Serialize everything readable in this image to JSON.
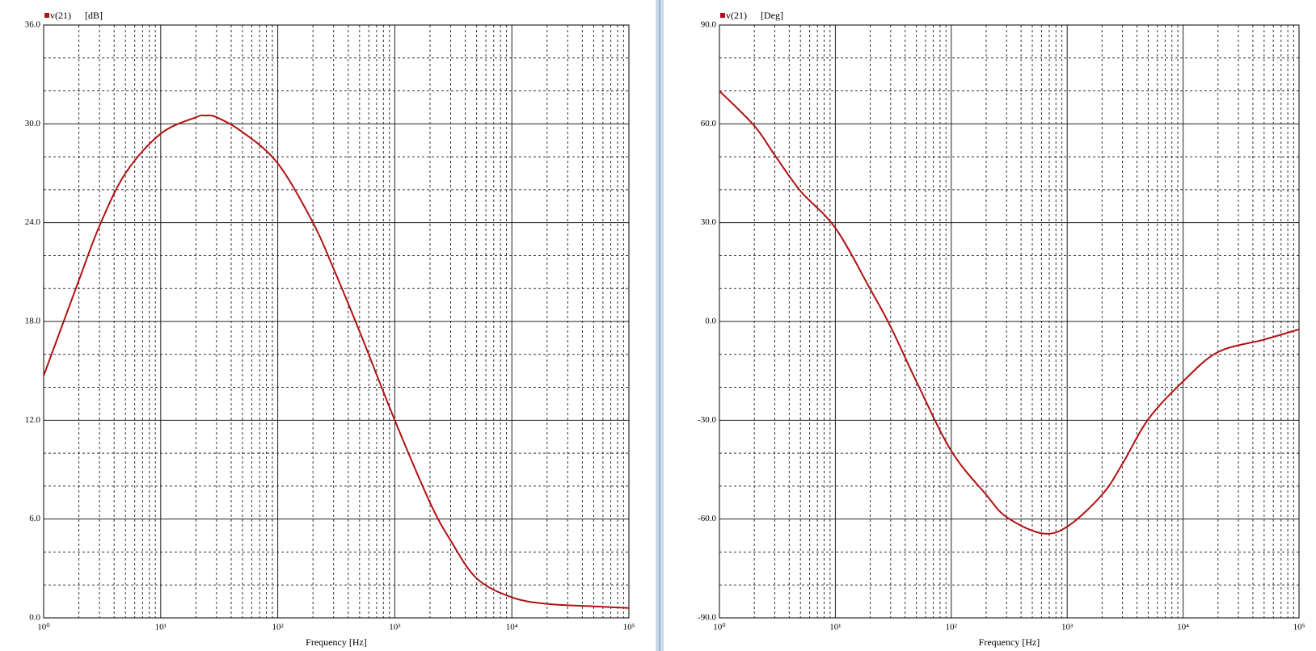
{
  "chart_data": [
    {
      "type": "line",
      "x_label": "Frequency [Hz]",
      "y_unit": "[dB]",
      "xscale": "log",
      "grid": true,
      "x": [
        1,
        2,
        3,
        5,
        10,
        20,
        24,
        30,
        50,
        100,
        200,
        300,
        500,
        1000,
        2000,
        3000,
        5000,
        10000,
        20000,
        50000,
        100000
      ],
      "series": [
        {
          "name": "v(21)",
          "color": "#b01212",
          "values": [
            14.7,
            20.5,
            23.8,
            27,
            29.4,
            30.4,
            30.5,
            30.4,
            29.5,
            27.6,
            24,
            21.2,
            17.4,
            12,
            7,
            4.7,
            2.4,
            1.25,
            0.85,
            0.7,
            0.6
          ]
        }
      ],
      "xlim": [
        1,
        100000
      ],
      "xticks": [
        {
          "value": 1,
          "label": "10⁰"
        },
        {
          "value": 10,
          "label": "10¹"
        },
        {
          "value": 100,
          "label": "10²"
        },
        {
          "value": 1000,
          "label": "10³"
        },
        {
          "value": 10000,
          "label": "10⁴"
        },
        {
          "value": 100000,
          "label": "10⁵"
        }
      ],
      "xminor": [
        2,
        3,
        4,
        5,
        6,
        7,
        8,
        9,
        20,
        30,
        40,
        50,
        60,
        70,
        80,
        90,
        200,
        300,
        400,
        500,
        600,
        700,
        800,
        900,
        2000,
        3000,
        4000,
        5000,
        6000,
        7000,
        8000,
        9000,
        20000,
        30000,
        40000,
        50000,
        60000,
        70000,
        80000,
        90000
      ],
      "ylim": [
        0,
        36
      ],
      "yticks": [
        {
          "value": 0,
          "label": "0.0"
        },
        {
          "value": 6,
          "label": "6.0"
        },
        {
          "value": 12,
          "label": "12.0"
        },
        {
          "value": 18,
          "label": "18.0"
        },
        {
          "value": 24,
          "label": "24.0"
        },
        {
          "value": 30,
          "label": "30.0"
        },
        {
          "value": 36,
          "label": "36.0"
        }
      ],
      "yminor": [
        2,
        4,
        8,
        10,
        14,
        16,
        20,
        22,
        26,
        28,
        32,
        34
      ]
    },
    {
      "type": "line",
      "x_label": "Frequency [Hz]",
      "y_unit": "[Deg]",
      "xscale": "log",
      "grid": true,
      "x": [
        1,
        2,
        3,
        5,
        10,
        20,
        30,
        50,
        100,
        200,
        300,
        600,
        1000,
        2000,
        3000,
        5000,
        10000,
        20000,
        50000,
        100000
      ],
      "series": [
        {
          "name": "v(21)",
          "color": "#b01212",
          "values": [
            70,
            59.4,
            50.5,
            39.6,
            28.4,
            9.8,
            -1.6,
            -18.2,
            -39.3,
            -52.6,
            -59.4,
            -64.3,
            -62.3,
            -52.6,
            -43.2,
            -29.7,
            -18.2,
            -9.3,
            -5.5,
            -2.4
          ]
        }
      ],
      "xlim": [
        1,
        100000
      ],
      "xticks": [
        {
          "value": 1,
          "label": "10⁰"
        },
        {
          "value": 10,
          "label": "10¹"
        },
        {
          "value": 100,
          "label": "10²"
        },
        {
          "value": 1000,
          "label": "10³"
        },
        {
          "value": 10000,
          "label": "10⁴"
        },
        {
          "value": 100000,
          "label": "10⁵"
        }
      ],
      "xminor": [
        2,
        3,
        4,
        5,
        6,
        7,
        8,
        9,
        20,
        30,
        40,
        50,
        60,
        70,
        80,
        90,
        200,
        300,
        400,
        500,
        600,
        700,
        800,
        900,
        2000,
        3000,
        4000,
        5000,
        6000,
        7000,
        8000,
        9000,
        20000,
        30000,
        40000,
        50000,
        60000,
        70000,
        80000,
        90000
      ],
      "ylim": [
        -90,
        90
      ],
      "yticks": [
        {
          "value": -90,
          "label": "-90.0"
        },
        {
          "value": -60,
          "label": "-60.0"
        },
        {
          "value": -30,
          "label": "-30.0"
        },
        {
          "value": 0,
          "label": "0.0"
        },
        {
          "value": 30,
          "label": "30.0"
        },
        {
          "value": 60,
          "label": "60.0"
        },
        {
          "value": 90,
          "label": "90.0"
        }
      ],
      "yminor": [
        -80,
        -70,
        -50,
        -40,
        -20,
        -10,
        10,
        20,
        40,
        50,
        70,
        80
      ]
    }
  ]
}
